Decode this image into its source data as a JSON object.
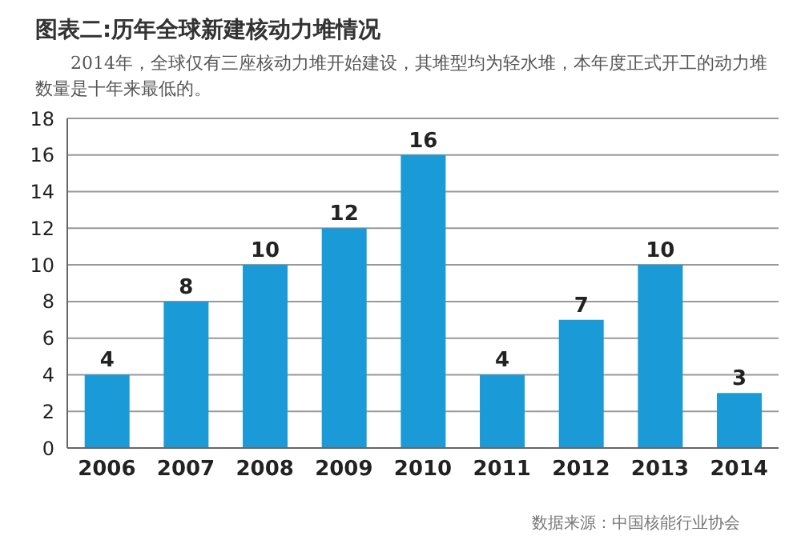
{
  "chart_data": {
    "type": "bar",
    "title": "图表二:历年全球新建核动力堆情况",
    "subtitle": "2014年，全球仅有三座核动力堆开始建设，其堆型均为轻水堆，本年度正式开工的动力堆数量是十年来最低的。",
    "categories": [
      "2006",
      "2007",
      "2008",
      "2009",
      "2010",
      "2011",
      "2012",
      "2013",
      "2014"
    ],
    "values": [
      4,
      8,
      10,
      12,
      16,
      4,
      7,
      10,
      3
    ],
    "color": "#1b9ad8",
    "ylim": [
      0,
      18
    ],
    "yticks": [
      0,
      2,
      4,
      6,
      8,
      10,
      12,
      14,
      16,
      18
    ],
    "grid": "y",
    "data_labels": true,
    "annotations": [
      "数据来源：中国核能行业协会"
    ]
  }
}
